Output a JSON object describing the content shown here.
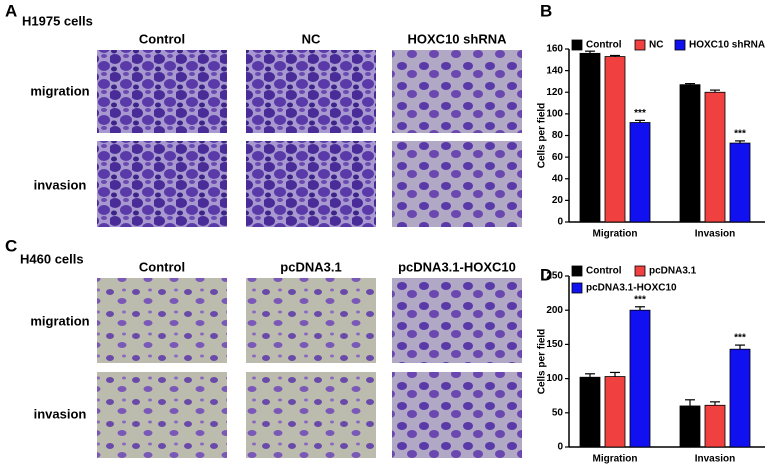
{
  "panels": [
    {
      "label": "A",
      "cell_line": "H1975 cells",
      "columns": [
        "Control",
        "NC",
        "HOXC10 shRNA"
      ],
      "rows": [
        "migration",
        "invasion"
      ]
    },
    {
      "label": "C",
      "cell_line": "H460 cells",
      "columns": [
        "Control",
        "pcDNA3.1",
        "pcDNA3.1-HOXC10"
      ],
      "rows": [
        "migration",
        "invasion"
      ]
    }
  ],
  "chart_data": [
    {
      "type": "bar",
      "label": "B",
      "ylabel": "Cells per field",
      "categories": [
        "Migration",
        "Invasion"
      ],
      "series": [
        {
          "name": "Control",
          "color": "#000000",
          "values": [
            156,
            127
          ],
          "errors": [
            2,
            1
          ]
        },
        {
          "name": "NC",
          "color": "#f04040",
          "values": [
            153,
            120
          ],
          "errors": [
            1,
            2
          ]
        },
        {
          "name": "HOXC10 shRNA",
          "color": "#1010f0",
          "values": [
            92,
            73
          ],
          "errors": [
            2,
            2
          ],
          "significance": [
            "***",
            "***"
          ]
        }
      ],
      "ylim": [
        0,
        160
      ],
      "yticks": [
        0,
        20,
        40,
        60,
        80,
        100,
        120,
        140,
        160
      ]
    },
    {
      "type": "bar",
      "label": "D",
      "ylabel": "Cells per field",
      "categories": [
        "Migration",
        "Invasion"
      ],
      "series": [
        {
          "name": "Control",
          "color": "#000000",
          "values": [
            102,
            60
          ],
          "errors": [
            5,
            9
          ]
        },
        {
          "name": "pcDNA3.1",
          "color": "#f04040",
          "values": [
            103,
            61
          ],
          "errors": [
            6,
            5
          ]
        },
        {
          "name": "pcDNA3.1-HOXC10",
          "color": "#1010f0",
          "values": [
            200,
            143
          ],
          "errors": [
            5,
            6
          ],
          "significance": [
            "***",
            "***"
          ]
        }
      ],
      "ylim": [
        0,
        250
      ],
      "yticks": [
        0,
        50,
        100,
        150,
        200,
        250
      ]
    }
  ]
}
